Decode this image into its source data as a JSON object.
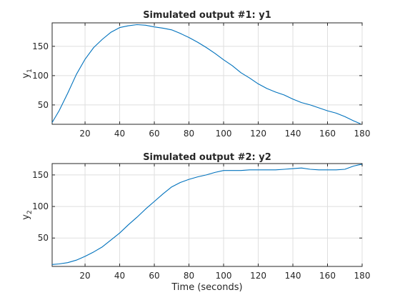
{
  "figure": {
    "xlabel": "Time (seconds)"
  },
  "chart_data": [
    {
      "type": "line",
      "title": "Simulated output #1: y1",
      "ylabel": "y",
      "ylabel_subscript": "1",
      "xlim": [
        1,
        180
      ],
      "ylim": [
        17,
        190
      ],
      "xticks": [
        20,
        40,
        60,
        80,
        100,
        120,
        140,
        160,
        180
      ],
      "yticks": [
        50,
        100,
        150
      ],
      "grid": true,
      "line_color": "#0072BD",
      "series": [
        {
          "x": [
            1,
            5,
            10,
            15,
            20,
            25,
            30,
            35,
            40,
            45,
            50,
            55,
            60,
            65,
            70,
            75,
            80,
            85,
            90,
            95,
            100,
            105,
            110,
            115,
            120,
            125,
            130,
            135,
            140,
            145,
            150,
            155,
            160,
            165,
            170,
            175,
            179
          ],
          "y": [
            20,
            40,
            70,
            102,
            128,
            148,
            162,
            174,
            182,
            185,
            187,
            186,
            183,
            181,
            178,
            172,
            165,
            157,
            148,
            138,
            127,
            117,
            105,
            96,
            86,
            78,
            72,
            67,
            60,
            54,
            50,
            45,
            40,
            36,
            30,
            23,
            18
          ]
        }
      ]
    },
    {
      "type": "line",
      "title": "Simulated output #2: y2",
      "ylabel": "y",
      "ylabel_subscript": "2",
      "xlim": [
        1,
        180
      ],
      "ylim": [
        5,
        168
      ],
      "xticks": [
        20,
        40,
        60,
        80,
        100,
        120,
        140,
        160,
        180
      ],
      "yticks": [
        50,
        100,
        150
      ],
      "grid": true,
      "line_color": "#0072BD",
      "series": [
        {
          "x": [
            1,
            5,
            10,
            15,
            20,
            25,
            30,
            35,
            40,
            45,
            50,
            55,
            60,
            65,
            70,
            75,
            80,
            85,
            90,
            95,
            100,
            105,
            110,
            115,
            120,
            125,
            130,
            135,
            140,
            145,
            150,
            155,
            160,
            165,
            170,
            175,
            178,
            180
          ],
          "y": [
            8,
            9,
            11,
            15,
            21,
            28,
            36,
            47,
            58,
            71,
            83,
            96,
            108,
            120,
            131,
            138,
            143,
            147,
            150,
            154,
            157,
            157,
            157,
            158,
            158,
            158,
            158,
            159,
            160,
            161,
            159,
            158,
            158,
            158,
            159,
            164,
            166,
            167
          ]
        }
      ]
    }
  ]
}
